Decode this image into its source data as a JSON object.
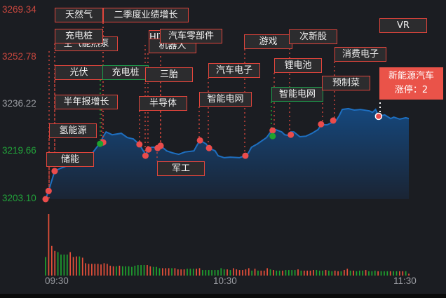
{
  "chart_data": {
    "type": "line",
    "y_ticks": [
      {
        "label": "3269.34",
        "value": 3269.34,
        "color": "#c9473e"
      },
      {
        "label": "3252.78",
        "value": 3252.78,
        "color": "#c9473e"
      },
      {
        "label": "3236.22",
        "value": 3236.22,
        "color": "#9a9ca2"
      },
      {
        "label": "3219.66",
        "value": 3219.66,
        "color": "#22a33a"
      },
      {
        "label": "3203.10",
        "value": 3203.1,
        "color": "#22a33a"
      }
    ],
    "x_ticks": [
      "09:30",
      "10:30",
      "11:30"
    ],
    "ylim": [
      3203.1,
      3269.34
    ],
    "xlim": [
      "09:30",
      "11:30"
    ],
    "grid": false,
    "colors": {
      "line": "#1e6fc0",
      "up": "#e8503a",
      "down": "#1fa32f",
      "tag_border": "#e2453c",
      "hot_tag": "#ea5349"
    },
    "price_series": [
      [
        "09:30",
        3203.1
      ],
      [
        "09:31",
        3206.0
      ],
      [
        "09:33",
        3213.0
      ],
      [
        "09:35",
        3214.0
      ],
      [
        "09:38",
        3215.2
      ],
      [
        "09:41",
        3216.4
      ],
      [
        "09:44",
        3216.9
      ],
      [
        "09:46",
        3220.1
      ],
      [
        "09:48",
        3222.9
      ],
      [
        "09:49",
        3225.1
      ],
      [
        "09:50",
        3226.8
      ],
      [
        "09:52",
        3225.8
      ],
      [
        "09:55",
        3226.3
      ],
      [
        "09:57",
        3224.8
      ],
      [
        "09:59",
        3224.3
      ],
      [
        "10:01",
        3222.4
      ],
      [
        "10:02",
        3220.6
      ],
      [
        "10:03",
        3218.9
      ],
      [
        "10:04",
        3220.6
      ],
      [
        "10:05",
        3221.4
      ],
      [
        "10:07",
        3221.4
      ],
      [
        "10:08",
        3221.9
      ],
      [
        "10:10",
        3220.1
      ],
      [
        "10:12",
        3219.4
      ],
      [
        "10:14",
        3218.9
      ],
      [
        "10:16",
        3219.7
      ],
      [
        "10:19",
        3220.1
      ],
      [
        "10:20",
        3222.1
      ],
      [
        "10:21",
        3223.8
      ],
      [
        "10:23",
        3222.6
      ],
      [
        "10:24",
        3221.1
      ],
      [
        "10:26",
        3220.1
      ],
      [
        "10:27",
        3218.4
      ],
      [
        "10:29",
        3217.7
      ],
      [
        "10:31",
        3217.9
      ],
      [
        "10:34",
        3217.7
      ],
      [
        "10:36",
        3218.4
      ],
      [
        "10:37",
        3219.4
      ],
      [
        "10:38",
        3221.4
      ],
      [
        "10:40",
        3222.6
      ],
      [
        "10:43",
        3224.8
      ],
      [
        "10:44",
        3226.3
      ],
      [
        "10:45",
        3227.3
      ],
      [
        "10:46",
        3227.6
      ],
      [
        "10:48",
        3226.8
      ],
      [
        "10:49",
        3225.8
      ],
      [
        "10:50",
        3225.6
      ],
      [
        "10:51",
        3226.8
      ],
      [
        "10:52",
        3226.8
      ],
      [
        "10:54",
        3225.1
      ],
      [
        "10:56",
        3225.3
      ],
      [
        "10:58",
        3226.3
      ],
      [
        "11:00",
        3227.6
      ],
      [
        "11:01",
        3229.3
      ],
      [
        "11:03",
        3229.3
      ],
      [
        "11:04",
        3229.8
      ],
      [
        "11:06",
        3230.8
      ],
      [
        "11:07",
        3232.5
      ],
      [
        "11:08",
        3234.7
      ],
      [
        "11:10",
        3235.0
      ],
      [
        "11:12",
        3234.5
      ],
      [
        "11:14",
        3234.7
      ],
      [
        "11:17",
        3234.2
      ],
      [
        "11:18",
        3233.7
      ],
      [
        "11:19",
        3234.7
      ],
      [
        "11:20",
        3232.3
      ],
      [
        "11:22",
        3232.8
      ],
      [
        "11:24",
        3231.5
      ],
      [
        "11:25",
        3232.0
      ],
      [
        "11:27",
        3231.3
      ],
      [
        "11:29",
        3231.8
      ],
      [
        "11:30",
        3231.5
      ]
    ],
    "volume": [
      -30,
      100,
      48,
      40,
      -38,
      -34,
      -34,
      -34,
      38,
      30,
      31,
      -31,
      29,
      20,
      19,
      19,
      19,
      19,
      18,
      20,
      19,
      16,
      15,
      -15,
      16,
      -15,
      -15,
      -15,
      -14,
      -16,
      -17,
      -17,
      -17,
      17,
      15,
      -14,
      -14,
      -12,
      12,
      12,
      12,
      -12,
      12,
      10,
      10,
      10,
      -11,
      -11,
      -11,
      11,
      12,
      -9,
      -9,
      -9,
      -9,
      -9,
      -9,
      -12,
      -10,
      10,
      -9,
      12,
      10,
      9,
      9,
      10,
      12,
      -8,
      11,
      -8,
      8,
      8,
      12,
      -10,
      9,
      -8,
      -8,
      8,
      -9,
      -9,
      -9,
      -9,
      10,
      -8,
      8,
      8,
      8,
      9,
      -9,
      -8,
      -8,
      9,
      -8,
      -7,
      8,
      7,
      -7,
      9,
      11,
      -8,
      8,
      -7,
      -8,
      -8,
      9,
      -7,
      -7,
      -8,
      7,
      -7,
      -7,
      -7,
      7,
      -7,
      -7,
      7,
      7,
      -7,
      3
    ],
    "events": [
      {
        "label": "空气能热泵",
        "time": "09:31",
        "price": 3206.0,
        "color": "red"
      },
      {
        "label": "储能",
        "time": "09:31",
        "price": 3206.0,
        "color": "red"
      },
      {
        "label": "氢能源",
        "time": "09:30",
        "price": 3203.1,
        "color": "red"
      },
      {
        "label": "光伏",
        "time": "09:33",
        "price": 3213.0,
        "color": "red"
      },
      {
        "label": "天然气",
        "time": "09:49",
        "price": 3223.1,
        "color": "red"
      },
      {
        "label": "二季度业绩增长",
        "time": "09:49",
        "price": 3223.1,
        "color": "red"
      },
      {
        "label": "充电桩",
        "time": "09:33",
        "price": 3213.0,
        "color": "red"
      },
      {
        "label": "半年报增长",
        "time": "09:49",
        "price": 3223.1,
        "color": "red"
      },
      {
        "label": "充电桩",
        "time": "09:48",
        "price": 3222.6,
        "color": "green"
      },
      {
        "label": "半导体",
        "time": "10:01",
        "price": 3222.4,
        "color": "red"
      },
      {
        "label": "HJT",
        "time": "10:03",
        "price": 3218.4,
        "color": "red"
      },
      {
        "label": "机器人",
        "time": "10:04",
        "price": 3220.6,
        "color": "red"
      },
      {
        "label": "三胎",
        "time": "10:08",
        "price": 3221.9,
        "color": "red"
      },
      {
        "label": "汽车零部件",
        "time": "10:08",
        "price": 3221.9,
        "color": "red"
      },
      {
        "label": "军工",
        "time": "10:07",
        "price": 3221.1,
        "color": "red"
      },
      {
        "label": "智能电网",
        "time": "10:21",
        "price": 3223.8,
        "color": "red"
      },
      {
        "label": "汽车电子",
        "time": "10:24",
        "price": 3221.1,
        "color": "red"
      },
      {
        "label": "游戏",
        "time": "10:36",
        "price": 3218.4,
        "color": "red"
      },
      {
        "label": "锂电池",
        "time": "10:45",
        "price": 3227.3,
        "color": "red"
      },
      {
        "label": "智能电网",
        "time": "10:45",
        "price": 3225.3,
        "color": "green"
      },
      {
        "label": "次新股",
        "time": "10:51",
        "price": 3225.8,
        "color": "red"
      },
      {
        "label": "预制菜",
        "time": "11:01",
        "price": 3229.5,
        "color": "red"
      },
      {
        "label": "消费电子",
        "time": "11:05",
        "price": 3230.8,
        "color": "red"
      },
      {
        "label": "VR",
        "time": null,
        "price": null,
        "color": "red"
      },
      {
        "label": "新能源汽车",
        "sub_label": "涨停：2",
        "time": "11:20",
        "price": 3232.3,
        "color": "hot"
      }
    ]
  }
}
